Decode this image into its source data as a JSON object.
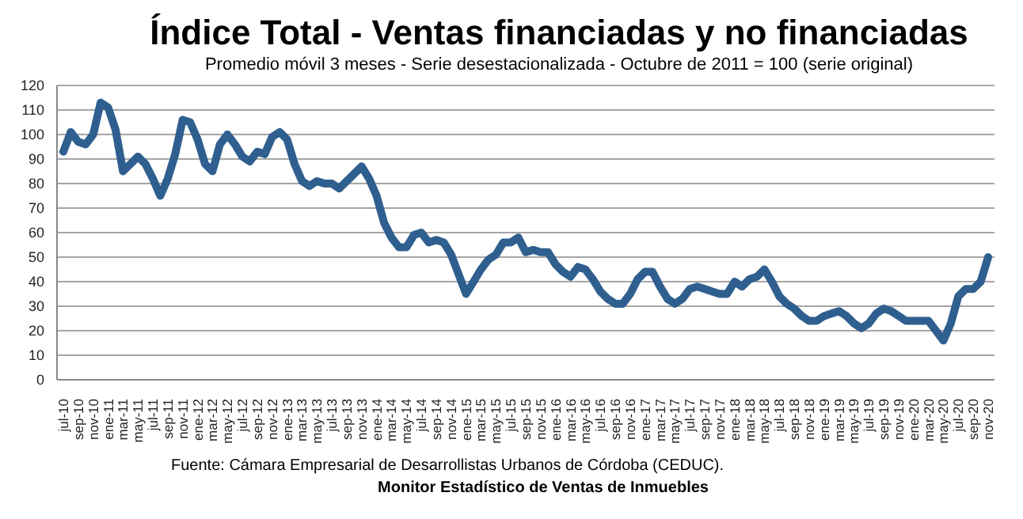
{
  "chart_data": {
    "type": "line",
    "title": "Índice Total - Ventas financiadas y no financiadas",
    "subtitle": "Promedio móvil 3 meses - Serie desestacionalizada - Octubre de 2011 = 100 (serie original)",
    "annotations": [
      "Fuente: Cámara Empresarial de Desarrollistas Urbanos de Córdoba (CEDUC).",
      "Monitor Estadístico de Ventas de Inmuebles"
    ],
    "categories": [
      "jul-10",
      null,
      "sep-10",
      null,
      "nov-10",
      null,
      "ene-11",
      null,
      "mar-11",
      null,
      "may-11",
      null,
      "jul-11",
      null,
      "sep-11",
      null,
      "nov-11",
      null,
      "ene-12",
      null,
      "mar-12",
      null,
      "may-12",
      null,
      "jul-12",
      null,
      "sep-12",
      null,
      "nov-12",
      null,
      "ene-13",
      null,
      "mar-13",
      null,
      "may-13",
      null,
      "jul-13",
      null,
      "sep-13",
      null,
      "nov-13",
      null,
      "ene-14",
      null,
      "mar-14",
      null,
      "may-14",
      null,
      "jul-14",
      null,
      "sep-14",
      null,
      "nov-14",
      null,
      "ene-15",
      null,
      "mar-15",
      null,
      "may-15",
      null,
      "jul-15",
      null,
      "sep-15",
      null,
      "nov-15",
      null,
      "ene-16",
      null,
      "mar-16",
      null,
      "may-16",
      null,
      "jul-16",
      null,
      "sep-16",
      null,
      "nov-16",
      null,
      "ene-17",
      null,
      "mar-17",
      null,
      "may-17",
      null,
      "jul-17",
      null,
      "sep-17",
      null,
      "nov-17",
      null,
      "ene-18",
      null,
      "mar-18",
      null,
      "may-18",
      null,
      "jul-18",
      null,
      "sep-18",
      null,
      "nov-18",
      null,
      "ene-19",
      null,
      "mar-19",
      null,
      "may-19",
      null,
      "jul-19",
      null,
      "sep-19",
      null,
      "nov-19",
      null,
      "ene-20",
      null,
      "mar-20",
      null,
      "may-20",
      null,
      "jul-20",
      null,
      "sep-20",
      null,
      "nov-20"
    ],
    "series": [
      {
        "color": "#2f5f8f",
        "values": [
          93,
          101,
          97,
          96,
          100,
          113,
          111,
          102,
          85,
          88,
          91,
          88,
          82,
          75,
          82,
          92,
          106,
          105,
          98,
          88,
          85,
          96,
          100,
          96,
          91,
          89,
          93,
          92,
          99,
          101,
          98,
          88,
          81,
          79,
          81,
          80,
          80,
          78,
          81,
          84,
          87,
          82,
          75,
          64,
          58,
          54,
          54,
          59,
          60,
          56,
          57,
          56,
          51,
          43,
          35,
          40,
          45,
          49,
          51,
          56,
          56,
          58,
          52,
          53,
          52,
          52,
          47,
          44,
          42,
          46,
          45,
          41,
          36,
          33,
          31,
          31,
          35,
          41,
          44,
          44,
          38,
          33,
          31,
          33,
          37,
          38,
          37,
          36,
          35,
          35,
          40,
          38,
          41,
          42,
          45,
          40,
          34,
          31,
          29,
          26,
          24,
          24,
          26,
          27,
          28,
          26,
          23,
          21,
          23,
          27,
          29,
          28,
          26,
          24,
          24,
          24,
          24,
          20,
          16,
          23,
          34,
          37,
          37,
          40,
          50
        ]
      }
    ],
    "ylim": [
      0,
      120
    ],
    "yticks": [
      0,
      10,
      20,
      30,
      40,
      50,
      60,
      70,
      80,
      90,
      100,
      110,
      120
    ],
    "grid": "y",
    "legend": false,
    "marker": "none",
    "line_style": "solid"
  }
}
